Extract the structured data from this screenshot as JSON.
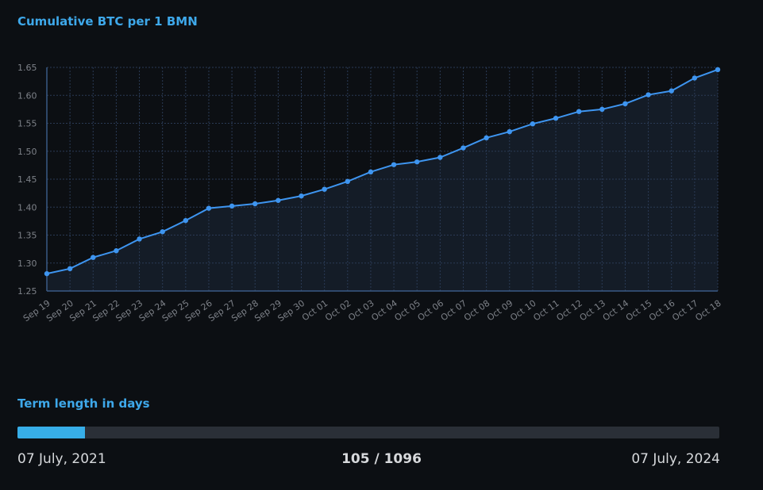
{
  "chart_data": {
    "type": "area",
    "title": "Cumulative BTC per 1 BMN",
    "xlabel": "",
    "ylabel": "",
    "ylim": [
      1.25,
      1.65
    ],
    "yticks": [
      "1.65",
      "1.60",
      "1.55",
      "1.50",
      "1.45",
      "1.40",
      "1.35",
      "1.30",
      "1.25"
    ],
    "grid": true,
    "x": [
      "Sep 19",
      "Sep 20",
      "Sep 21",
      "Sep 22",
      "Sep 23",
      "Sep 24",
      "Sep 25",
      "Sep 26",
      "Sep 27",
      "Sep 28",
      "Sep 29",
      "Sep 30",
      "Oct 01",
      "Oct 02",
      "Oct 03",
      "Oct 04",
      "Oct 05",
      "Oct 06",
      "Oct 07",
      "Oct 08",
      "Oct 09",
      "Oct 10",
      "Oct 11",
      "Oct 12",
      "Oct 13",
      "Oct 14",
      "Oct 15",
      "Oct 16",
      "Oct 17",
      "Oct 18"
    ],
    "values": [
      1.281,
      1.29,
      1.31,
      1.322,
      1.343,
      1.356,
      1.376,
      1.398,
      1.402,
      1.406,
      1.412,
      1.42,
      1.432,
      1.446,
      1.463,
      1.476,
      1.481,
      1.489,
      1.506,
      1.524,
      1.535,
      1.549,
      1.559,
      1.571,
      1.575,
      1.585,
      1.601,
      1.608,
      1.631,
      1.646
    ],
    "colors": {
      "line": "#3e95f0",
      "area": "#141c27",
      "grid": "#2a3a55",
      "tick_text": "#7d8188"
    }
  },
  "term": {
    "title": "Term length in days",
    "start_date": "07 July, 2021",
    "end_date": "07 July, 2024",
    "count_label": "105 / 1096",
    "current": 105,
    "total": 1096
  }
}
